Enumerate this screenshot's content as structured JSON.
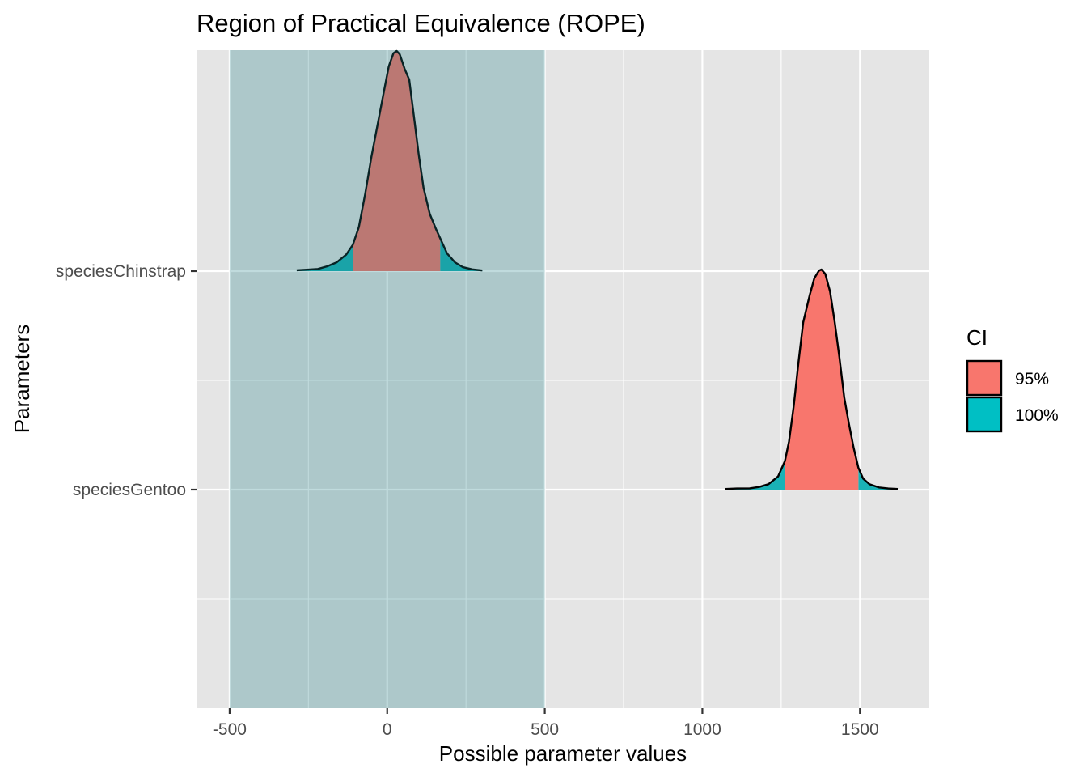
{
  "chart_data": {
    "type": "area",
    "title": "Region of Practical Equivalence (ROPE)",
    "xlabel": "Possible parameter values",
    "ylabel": "Parameters",
    "xlim": [
      -605,
      1720
    ],
    "x_ticks": [
      -500,
      0,
      500,
      1000,
      1500
    ],
    "x_tick_labels": [
      "-500",
      "0",
      "500",
      "1000",
      "1500"
    ],
    "categories": [
      "speciesChinstrap",
      "speciesGentoo"
    ],
    "grid": true,
    "rope": {
      "from": -500,
      "to": 500
    },
    "legend": {
      "title": "CI",
      "placement": "right",
      "entries": [
        {
          "label": "95%",
          "color": "#F8766D"
        },
        {
          "label": "100%",
          "color": "#00BFC4"
        }
      ]
    },
    "colors": {
      "panel": "#E5E5E5",
      "grid": "#FFFFFF",
      "rope": "#1B7F85",
      "ci95": "#F8766D",
      "ci100": "#1AB2B6",
      "outline": "#000000"
    },
    "series": [
      {
        "name": "speciesChinstrap",
        "ci95": [
          -109,
          168
        ],
        "range": [
          -287,
          302
        ],
        "peak_density": 1.0,
        "density": [
          [
            -287,
            0.004
          ],
          [
            -250,
            0.007
          ],
          [
            -220,
            0.01
          ],
          [
            -190,
            0.022
          ],
          [
            -160,
            0.04
          ],
          [
            -130,
            0.075
          ],
          [
            -109,
            0.12
          ],
          [
            -90,
            0.2
          ],
          [
            -70,
            0.35
          ],
          [
            -50,
            0.52
          ],
          [
            -30,
            0.67
          ],
          [
            -10,
            0.82
          ],
          [
            5,
            0.93
          ],
          [
            20,
            0.99
          ],
          [
            30,
            1.0
          ],
          [
            40,
            0.985
          ],
          [
            55,
            0.92
          ],
          [
            70,
            0.87
          ],
          [
            85,
            0.7
          ],
          [
            100,
            0.53
          ],
          [
            115,
            0.38
          ],
          [
            135,
            0.26
          ],
          [
            155,
            0.19
          ],
          [
            168,
            0.15
          ],
          [
            190,
            0.08
          ],
          [
            215,
            0.04
          ],
          [
            240,
            0.018
          ],
          [
            270,
            0.008
          ],
          [
            302,
            0.003
          ]
        ]
      },
      {
        "name": "speciesGentoo",
        "ci95": [
          1262,
          1495
        ],
        "range": [
          1072,
          1620
        ],
        "peak_density": 1.0,
        "density": [
          [
            1072,
            0.003
          ],
          [
            1110,
            0.005
          ],
          [
            1150,
            0.006
          ],
          [
            1180,
            0.012
          ],
          [
            1210,
            0.025
          ],
          [
            1240,
            0.06
          ],
          [
            1262,
            0.13
          ],
          [
            1275,
            0.22
          ],
          [
            1290,
            0.38
          ],
          [
            1305,
            0.58
          ],
          [
            1320,
            0.76
          ],
          [
            1340,
            0.88
          ],
          [
            1355,
            0.96
          ],
          [
            1370,
            0.995
          ],
          [
            1378,
            1.0
          ],
          [
            1390,
            0.98
          ],
          [
            1405,
            0.9
          ],
          [
            1420,
            0.76
          ],
          [
            1435,
            0.6
          ],
          [
            1450,
            0.42
          ],
          [
            1465,
            0.3
          ],
          [
            1480,
            0.19
          ],
          [
            1495,
            0.1
          ],
          [
            1510,
            0.05
          ],
          [
            1530,
            0.025
          ],
          [
            1560,
            0.01
          ],
          [
            1590,
            0.005
          ],
          [
            1620,
            0.003
          ]
        ]
      }
    ]
  }
}
